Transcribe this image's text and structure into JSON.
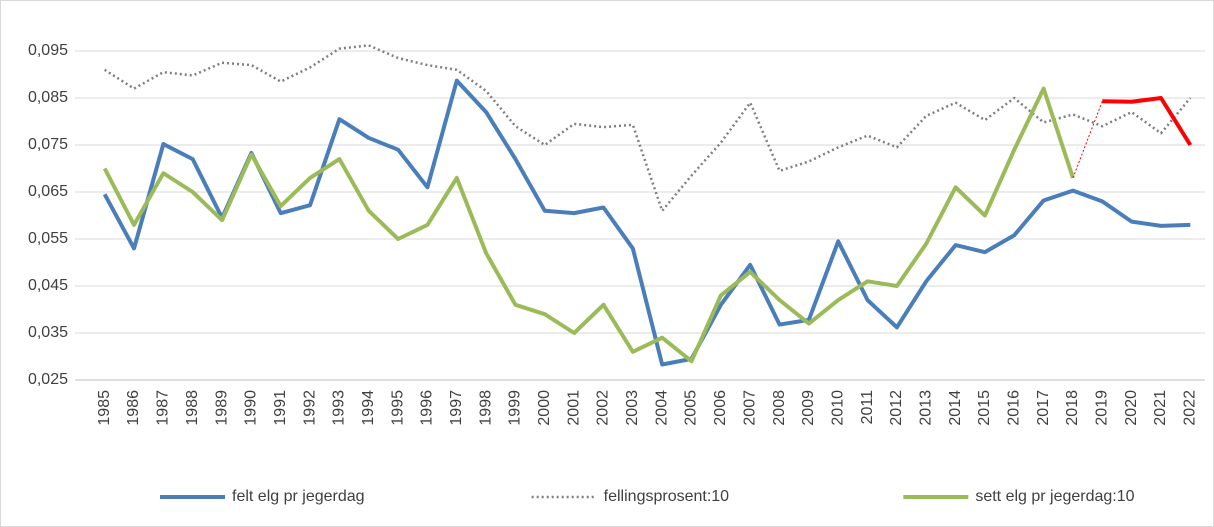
{
  "chart_data": {
    "type": "line",
    "categories": [
      "1985",
      "1986",
      "1987",
      "1988",
      "1989",
      "1990",
      "1991",
      "1992",
      "1993",
      "1994",
      "1995",
      "1996",
      "1997",
      "1998",
      "1999",
      "2000",
      "2001",
      "2002",
      "2003",
      "2004",
      "2005",
      "2006",
      "2007",
      "2008",
      "2009",
      "2010",
      "2011",
      "2012",
      "2013",
      "2014",
      "2015",
      "2016",
      "2017",
      "2018",
      "2019",
      "2020",
      "2021",
      "2022"
    ],
    "series": [
      {
        "name": "felt elg pr jegerdag",
        "color": "#4a7ebb",
        "width": 4,
        "dash": "solid",
        "values": [
          0.0645,
          0.053,
          0.0752,
          0.072,
          0.0595,
          0.0733,
          0.0605,
          0.0622,
          0.0805,
          0.0765,
          0.074,
          0.066,
          0.0887,
          0.082,
          0.072,
          0.061,
          0.0605,
          0.0617,
          0.053,
          0.0283,
          0.0295,
          0.041,
          0.0495,
          0.0368,
          0.0378,
          0.0545,
          0.042,
          0.0362,
          0.046,
          0.0537,
          0.0522,
          0.0558,
          0.0632,
          0.0653,
          0.063,
          0.0587,
          0.0578,
          0.058
        ]
      },
      {
        "name": "fellingsprosent:10",
        "color": "#7f7f7f",
        "width": 2.5,
        "dash": "dot",
        "values": [
          0.091,
          0.087,
          0.0905,
          0.0898,
          0.0925,
          0.092,
          0.0885,
          0.0915,
          0.0955,
          0.0962,
          0.0935,
          0.092,
          0.091,
          0.0865,
          0.079,
          0.075,
          0.0795,
          0.0788,
          0.0793,
          0.061,
          0.0685,
          0.0755,
          0.084,
          0.0695,
          0.0715,
          0.0745,
          0.077,
          0.0745,
          0.0812,
          0.084,
          0.0803,
          0.085,
          0.0798,
          0.0815,
          0.079,
          0.082,
          0.0775,
          0.085
        ]
      },
      {
        "name": "sett elg pr jegerdag:10",
        "color": "#9bbb59",
        "width": 4,
        "dash": "solid",
        "values": [
          0.07,
          0.058,
          0.069,
          0.065,
          0.059,
          0.073,
          0.062,
          0.068,
          0.072,
          0.061,
          0.055,
          0.058,
          0.068,
          0.052,
          0.041,
          0.039,
          0.035,
          0.041,
          0.031,
          0.034,
          0.029,
          0.043,
          0.048,
          0.042,
          0.037,
          0.042,
          0.046,
          0.045,
          0.054,
          0.066,
          0.06,
          0.074,
          0.087,
          0.068,
          null,
          null,
          null,
          null
        ]
      },
      {
        "color": "#ff0000",
        "width": 1,
        "dash": "dot",
        "values": [
          null,
          null,
          null,
          null,
          null,
          null,
          null,
          null,
          null,
          null,
          null,
          null,
          null,
          null,
          null,
          null,
          null,
          null,
          null,
          null,
          null,
          null,
          null,
          null,
          null,
          null,
          null,
          null,
          null,
          null,
          null,
          null,
          null,
          0.068,
          0.0843,
          null,
          null,
          null
        ]
      },
      {
        "color": "#ff0000",
        "width": 4,
        "dash": "solid",
        "values": [
          null,
          null,
          null,
          null,
          null,
          null,
          null,
          null,
          null,
          null,
          null,
          null,
          null,
          null,
          null,
          null,
          null,
          null,
          null,
          null,
          null,
          null,
          null,
          null,
          null,
          null,
          null,
          null,
          null,
          null,
          null,
          null,
          null,
          null,
          0.0843,
          0.0842,
          0.085,
          0.075
        ]
      }
    ],
    "ylim": [
      0.025,
      0.1
    ],
    "yticks": [
      {
        "value": 0.025,
        "label": "0,025"
      },
      {
        "value": 0.035,
        "label": "0,035"
      },
      {
        "value": 0.045,
        "label": "0,045"
      },
      {
        "value": 0.055,
        "label": "0,055"
      },
      {
        "value": 0.065,
        "label": "0,065"
      },
      {
        "value": 0.075,
        "label": "0,075"
      },
      {
        "value": 0.085,
        "label": "0,085"
      },
      {
        "value": 0.095,
        "label": "0,095"
      }
    ],
    "grid": true,
    "legend": "bottom"
  }
}
